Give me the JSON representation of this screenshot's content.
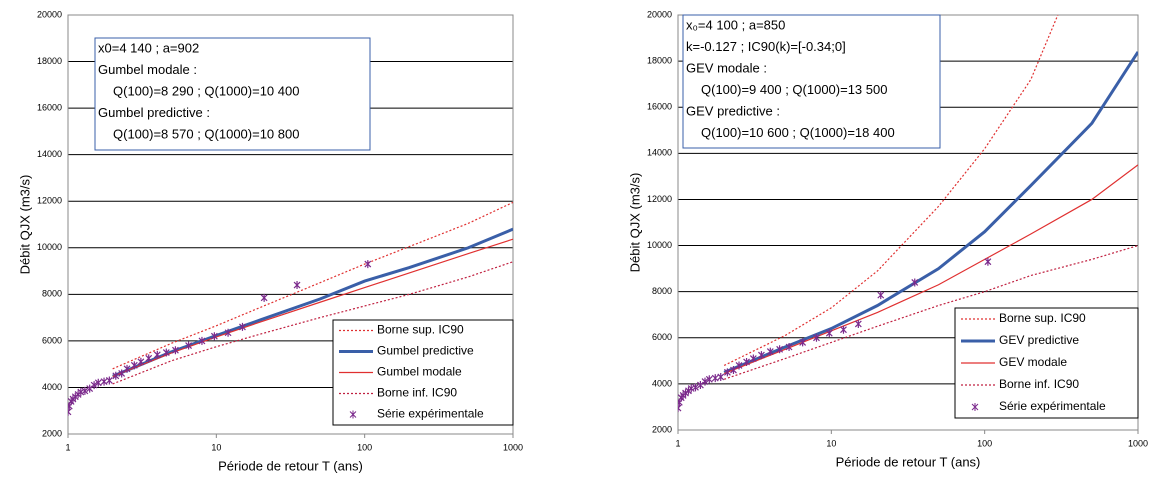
{
  "chart_data": [
    {
      "type": "line",
      "xlabel": "Période de retour T (ans)",
      "ylabel": "Débit QJX (m3/s)",
      "xlog": true,
      "xlim": [
        1,
        1000
      ],
      "xticks": [
        1,
        10,
        100,
        1000
      ],
      "ylim": [
        2000,
        20000
      ],
      "yticks": [
        2000,
        4000,
        6000,
        8000,
        10000,
        12000,
        14000,
        16000,
        18000,
        20000
      ],
      "grid": true,
      "legend": "lower right",
      "annotations": [
        "x0=4 140 ; a=902",
        "Gumbel modale :",
        "Q(100)=8 290  ; Q(1000)=10 400",
        "Gumbel predictive :",
        "Q(100)=8 570 ; Q(1000)=10 800"
      ],
      "series": [
        {
          "name": "Borne sup. IC90",
          "color": "#e03030",
          "style": "dotted",
          "width": 1.2,
          "x": [
            2,
            5,
            10,
            20,
            50,
            100,
            200,
            500,
            1000
          ],
          "values": [
            4800,
            5900,
            6650,
            7450,
            8500,
            9300,
            10050,
            11050,
            11950
          ]
        },
        {
          "name": "Gumbel predictive",
          "color": "#3a5fa8",
          "style": "solid",
          "width": 3,
          "x": [
            2,
            5,
            10,
            20,
            50,
            100,
            200,
            500,
            1000
          ],
          "values": [
            4480,
            5530,
            6230,
            6910,
            7800,
            8570,
            9150,
            10000,
            10800
          ]
        },
        {
          "name": "Gumbel modale",
          "color": "#e03030",
          "style": "solid",
          "width": 1.2,
          "x": [
            2,
            5,
            10,
            20,
            50,
            100,
            200,
            500,
            1000
          ],
          "values": [
            4470,
            5490,
            6170,
            6820,
            7660,
            8290,
            8920,
            9750,
            10370
          ]
        },
        {
          "name": "Borne inf. IC90",
          "color": "#c02040",
          "style": "dotted",
          "width": 1.2,
          "x": [
            2,
            5,
            10,
            20,
            50,
            100,
            200,
            500,
            1000
          ],
          "values": [
            4150,
            5150,
            5750,
            6300,
            7000,
            7500,
            8000,
            8750,
            9400
          ]
        },
        {
          "name": "Série expérimentale",
          "color": "#7b2a8c",
          "style": "marker",
          "x": [
            1.0,
            1.02,
            1.05,
            1.08,
            1.12,
            1.17,
            1.22,
            1.3,
            1.4,
            1.5,
            1.6,
            1.75,
            1.9,
            2.1,
            2.3,
            2.5,
            2.8,
            3.1,
            3.5,
            4,
            4.6,
            5.3,
            6.5,
            8,
            9.7,
            12,
            15,
            21,
            35,
            105
          ],
          "values": [
            2950,
            3200,
            3400,
            3500,
            3600,
            3700,
            3800,
            3850,
            3950,
            4100,
            4200,
            4250,
            4300,
            4500,
            4600,
            4800,
            4950,
            5100,
            5250,
            5400,
            5500,
            5600,
            5800,
            6000,
            6200,
            6350,
            6600,
            7850,
            8400,
            9300
          ]
        }
      ]
    },
    {
      "type": "line",
      "xlabel": "Période de retour T (ans)",
      "ylabel": "Débit QJX (m3/s)",
      "xlog": true,
      "xlim": [
        1,
        1000
      ],
      "xticks": [
        1,
        10,
        100,
        1000
      ],
      "ylim": [
        2000,
        20000
      ],
      "yticks": [
        2000,
        4000,
        6000,
        8000,
        10000,
        12000,
        14000,
        16000,
        18000,
        20000
      ],
      "grid": true,
      "legend": "lower right",
      "annotations": [
        "x₀=4 100 ; a=850",
        "k=-0.127 ; IC90(k)=[-0.34;0]",
        "GEV modale :",
        "Q(100)=9 400  ; Q(1000)=13 500",
        "GEV predictive :",
        "Q(100)=10 600  ; Q(1000)=18 400"
      ],
      "series": [
        {
          "name": "Borne sup. IC90",
          "color": "#e03030",
          "style": "dotted",
          "width": 1.2,
          "x": [
            2,
            5,
            10,
            20,
            50,
            100,
            200,
            300
          ],
          "values": [
            4800,
            6100,
            7300,
            8900,
            11700,
            14200,
            17200,
            20000
          ]
        },
        {
          "name": "GEV predictive",
          "color": "#3a5fa8",
          "style": "solid",
          "width": 3,
          "x": [
            2,
            5,
            10,
            20,
            50,
            100,
            200,
            500,
            1000
          ],
          "values": [
            4500,
            5600,
            6400,
            7400,
            9000,
            10600,
            12600,
            15300,
            18400
          ]
        },
        {
          "name": "GEV modale",
          "color": "#e03030",
          "style": "solid",
          "width": 1.2,
          "x": [
            2,
            5,
            10,
            20,
            50,
            100,
            200,
            500,
            1000
          ],
          "values": [
            4450,
            5500,
            6300,
            7100,
            8300,
            9400,
            10500,
            12000,
            13500
          ]
        },
        {
          "name": "Borne inf. IC90",
          "color": "#c02040",
          "style": "dotted",
          "width": 1.2,
          "x": [
            2,
            5,
            10,
            20,
            50,
            100,
            200,
            500,
            1000
          ],
          "values": [
            4200,
            5100,
            5800,
            6500,
            7400,
            8000,
            8700,
            9400,
            10000
          ]
        },
        {
          "name": "Série expérimentale",
          "color": "#7b2a8c",
          "style": "marker",
          "x": [
            1.0,
            1.02,
            1.05,
            1.08,
            1.12,
            1.17,
            1.22,
            1.3,
            1.4,
            1.5,
            1.6,
            1.75,
            1.9,
            2.1,
            2.3,
            2.5,
            2.8,
            3.1,
            3.5,
            4,
            4.6,
            5.3,
            6.5,
            8,
            9.7,
            12,
            15,
            21,
            35,
            105
          ],
          "values": [
            2950,
            3200,
            3400,
            3500,
            3600,
            3700,
            3800,
            3850,
            3950,
            4100,
            4200,
            4250,
            4300,
            4500,
            4600,
            4800,
            4950,
            5100,
            5250,
            5400,
            5500,
            5600,
            5800,
            6000,
            6200,
            6350,
            6600,
            7850,
            8400,
            9300
          ]
        }
      ]
    }
  ]
}
